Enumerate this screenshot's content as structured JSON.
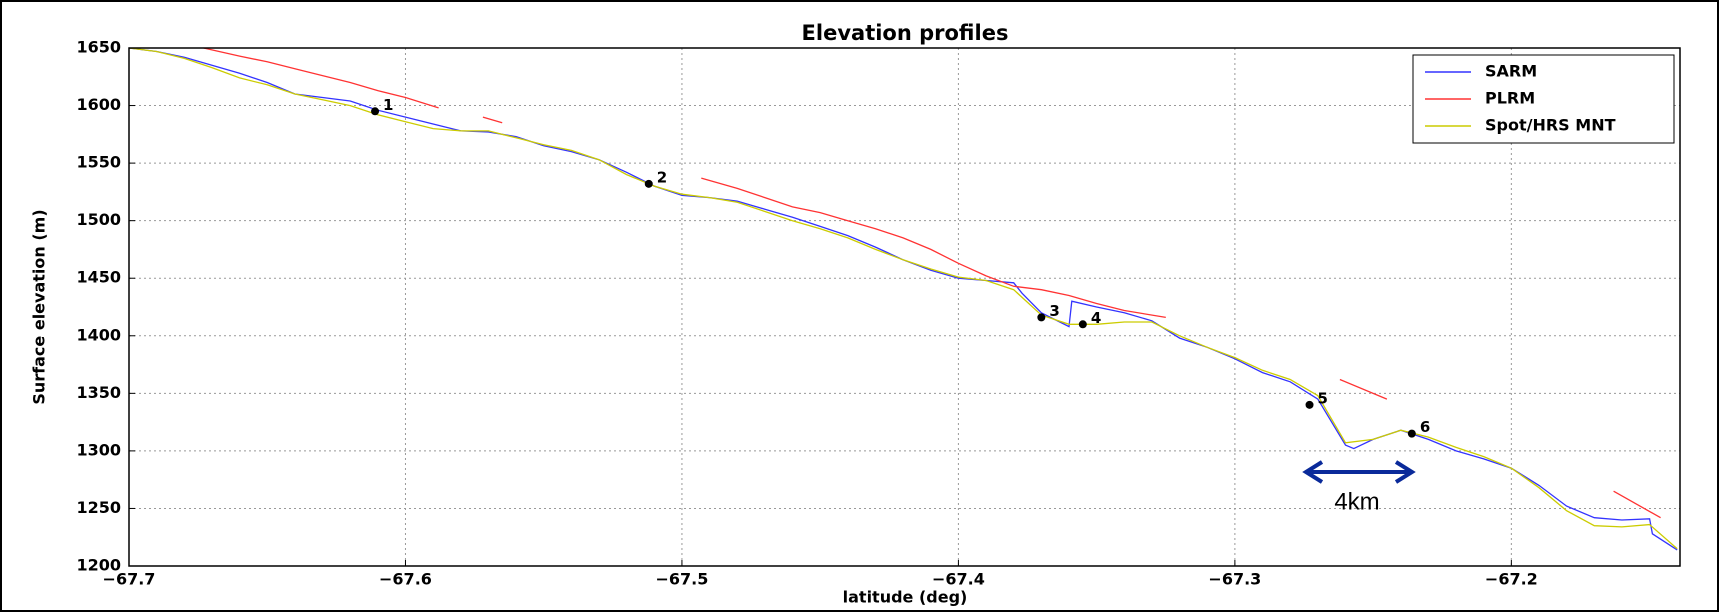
{
  "chart_data": {
    "type": "line",
    "title": "Elevation profiles",
    "xlabel": "latitude (deg)",
    "ylabel": "Surface elevation (m)",
    "xlim": [
      -67.7,
      -67.139
    ],
    "ylim": [
      1200,
      1650
    ],
    "xticks": [
      {
        "value": -67.7,
        "label": "−67.7"
      },
      {
        "value": -67.6,
        "label": "−67.6"
      },
      {
        "value": -67.5,
        "label": "−67.5"
      },
      {
        "value": -67.4,
        "label": "−67.4"
      },
      {
        "value": -67.3,
        "label": "−67.3"
      },
      {
        "value": -67.2,
        "label": "−67.2"
      }
    ],
    "yticks": [
      1200,
      1250,
      1300,
      1350,
      1400,
      1450,
      1500,
      1550,
      1600,
      1650
    ],
    "grid": true,
    "legend": "upper right",
    "series": [
      {
        "name": "SARM",
        "color": "#3333ff",
        "x": [
          -67.7,
          -67.69,
          -67.68,
          -67.67,
          -67.66,
          -67.65,
          -67.64,
          -67.63,
          -67.62,
          -67.61,
          -67.6,
          -67.59,
          -67.58,
          -67.57,
          -67.56,
          -67.55,
          -67.54,
          -67.53,
          -67.52,
          -67.51,
          -67.5,
          -67.49,
          -67.48,
          -67.47,
          -67.46,
          -67.45,
          -67.44,
          -67.43,
          -67.42,
          -67.41,
          -67.4,
          -67.39,
          -67.38,
          -67.377,
          -67.37,
          -67.36,
          -67.359,
          -67.35,
          -67.34,
          -67.33,
          -67.32,
          -67.31,
          -67.3,
          -67.29,
          -67.28,
          -67.27,
          -67.26,
          -67.257,
          -67.25,
          -67.24,
          -67.23,
          -67.22,
          -67.21,
          -67.2,
          -67.19,
          -67.18,
          -67.17,
          -67.16,
          -67.15,
          -67.149,
          -67.14
        ],
        "values": [
          1650,
          1647,
          1642,
          1635,
          1628,
          1620,
          1610,
          1607,
          1604,
          1596,
          1590,
          1584,
          1578,
          1577,
          1573,
          1565,
          1560,
          1553,
          1542,
          1530,
          1522,
          1520,
          1517,
          1510,
          1503,
          1495,
          1487,
          1477,
          1466,
          1457,
          1450,
          1448,
          1446,
          1437,
          1420,
          1408,
          1430,
          1425,
          1420,
          1413,
          1398,
          1390,
          1380,
          1368,
          1360,
          1345,
          1305,
          1302,
          1310,
          1318,
          1310,
          1300,
          1293,
          1285,
          1270,
          1252,
          1242,
          1240,
          1241,
          1228,
          1214
        ]
      },
      {
        "name": "PLRM",
        "color": "#ff3333",
        "x": [
          -67.673,
          -67.66,
          -67.65,
          -67.64,
          -67.63,
          -67.62,
          -67.61,
          -67.6,
          -67.588,
          -67.58,
          -67.572,
          -67.565,
          -67.53,
          -67.493,
          -67.48,
          -67.47,
          -67.46,
          -67.45,
          -67.44,
          -67.43,
          -67.42,
          -67.41,
          -67.4,
          -67.39,
          -67.38,
          -67.37,
          -67.36,
          -67.35,
          -67.34,
          -67.325,
          -67.3,
          -67.262,
          -67.245,
          -67.2,
          -67.163,
          -67.146
        ],
        "values": [
          1650,
          1643,
          1638,
          1632,
          1626,
          1620,
          1613,
          1607,
          1598,
          null,
          1590,
          1585,
          null,
          1537,
          1528,
          1520,
          1512,
          1507,
          1500,
          1493,
          1485,
          1475,
          1463,
          1452,
          1443,
          1440,
          1435,
          1428,
          1422,
          1416,
          null,
          1362,
          1345,
          null,
          1265,
          1242
        ]
      },
      {
        "name": "Spot/HRS MNT",
        "color": "#cccc00",
        "x": [
          -67.7,
          -67.69,
          -67.68,
          -67.67,
          -67.66,
          -67.65,
          -67.64,
          -67.63,
          -67.62,
          -67.61,
          -67.6,
          -67.59,
          -67.58,
          -67.57,
          -67.56,
          -67.55,
          -67.54,
          -67.53,
          -67.52,
          -67.51,
          -67.5,
          -67.49,
          -67.48,
          -67.47,
          -67.46,
          -67.45,
          -67.44,
          -67.43,
          -67.42,
          -67.41,
          -67.4,
          -67.39,
          -67.38,
          -67.37,
          -67.36,
          -67.35,
          -67.34,
          -67.33,
          -67.32,
          -67.31,
          -67.3,
          -67.29,
          -67.28,
          -67.27,
          -67.26,
          -67.25,
          -67.24,
          -67.23,
          -67.22,
          -67.21,
          -67.2,
          -67.19,
          -67.18,
          -67.17,
          -67.16,
          -67.15,
          -67.14
        ],
        "values": [
          1650,
          1647,
          1641,
          1633,
          1624,
          1618,
          1610,
          1605,
          1600,
          1592,
          1586,
          1580,
          1578,
          1578,
          1572,
          1566,
          1561,
          1553,
          1540,
          1530,
          1523,
          1520,
          1516,
          1508,
          1500,
          1493,
          1485,
          1475,
          1466,
          1458,
          1451,
          1448,
          1440,
          1418,
          1410,
          1410,
          1412,
          1412,
          1400,
          1390,
          1381,
          1370,
          1362,
          1348,
          1307,
          1310,
          1318,
          1312,
          1303,
          1295,
          1285,
          1268,
          1248,
          1235,
          1234,
          1236,
          1215
        ]
      }
    ],
    "points": {
      "labels": [
        "1",
        "2",
        "3",
        "4",
        "5",
        "6"
      ],
      "x": [
        -67.611,
        -67.512,
        -67.37,
        -67.355,
        -67.273,
        -67.236
      ],
      "values": [
        1595,
        1532,
        1416,
        1410,
        1340,
        1315
      ]
    },
    "annotation": "4km"
  }
}
